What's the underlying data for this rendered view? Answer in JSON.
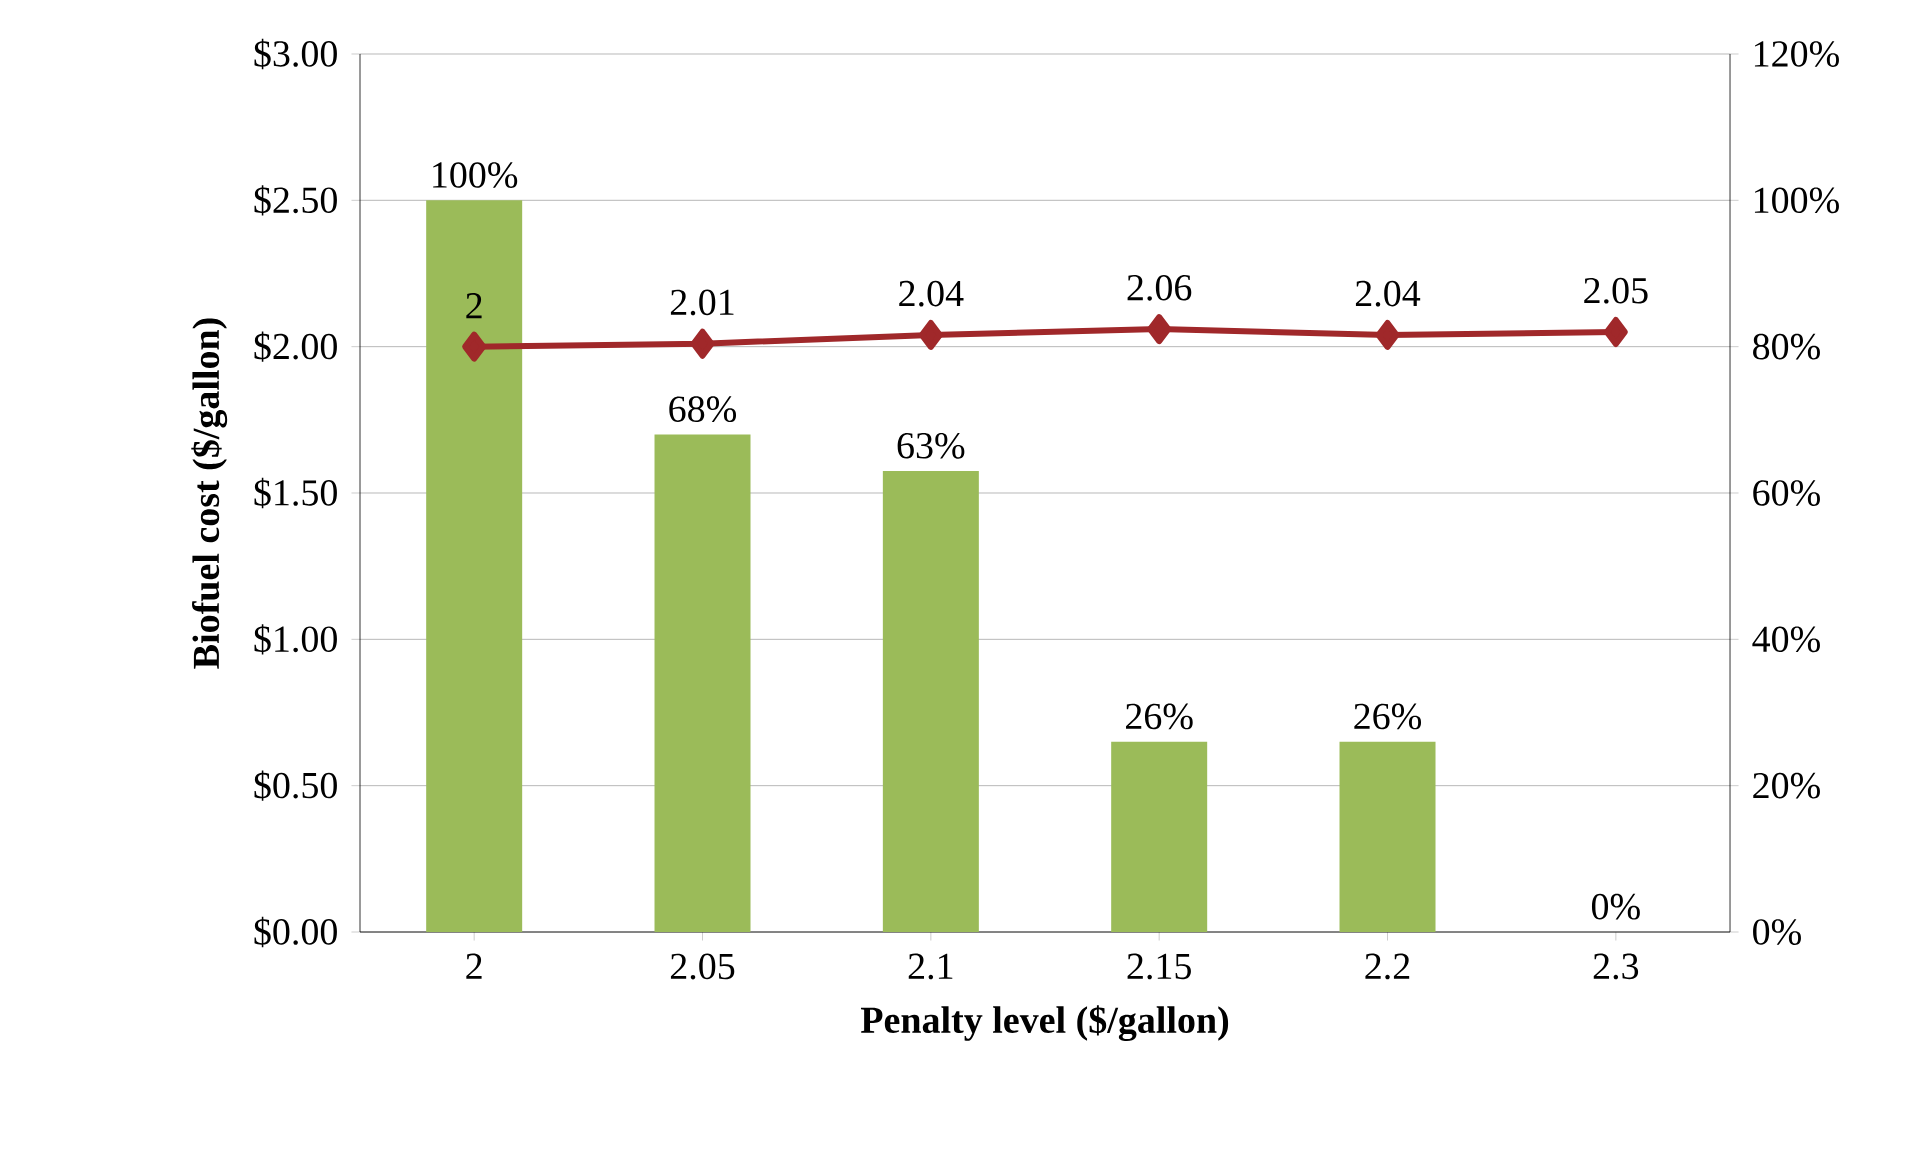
{
  "chart_data": {
    "type": "bar",
    "xlabel": "Penalty level ($/gallon)",
    "ylabel": "Biofuel cost ($/gallon)",
    "categories": [
      "2",
      "2.05",
      "2.1",
      "2.15",
      "2.2",
      "2.3"
    ],
    "series": [
      {
        "axis": "y2",
        "color": "#9bbb59",
        "values": [
          100,
          68,
          63,
          26,
          26,
          0
        ],
        "value_labels": [
          "100%",
          "68%",
          "63%",
          "26%",
          "26%",
          "0%"
        ]
      },
      {
        "type": "line",
        "color": "#a0282a",
        "marker": "diamond",
        "line_style": "solid",
        "values": [
          2,
          2.01,
          2.04,
          2.06,
          2.04,
          2.05
        ],
        "value_labels": [
          "2",
          "2.01",
          "2.04",
          "2.06",
          "2.04",
          "2.05"
        ]
      }
    ],
    "ylim": [
      0,
      3
    ],
    "yticks": [
      {
        "value": 0,
        "label": "$0.00"
      },
      {
        "value": 0.5,
        "label": "$0.50"
      },
      {
        "value": 1,
        "label": "$1.00"
      },
      {
        "value": 1.5,
        "label": "$1.50"
      },
      {
        "value": 2,
        "label": "$2.00"
      },
      {
        "value": 2.5,
        "label": "$2.50"
      },
      {
        "value": 3,
        "label": "$3.00"
      }
    ],
    "y2lim": [
      0,
      120
    ],
    "y2ticks": [
      {
        "value": 0,
        "label": "0%"
      },
      {
        "value": 20,
        "label": "20%"
      },
      {
        "value": 40,
        "label": "40%"
      },
      {
        "value": 60,
        "label": "60%"
      },
      {
        "value": 80,
        "label": "80%"
      },
      {
        "value": 100,
        "label": "100%"
      },
      {
        "value": 120,
        "label": "120%"
      }
    ],
    "grid": "y",
    "legend": false
  }
}
